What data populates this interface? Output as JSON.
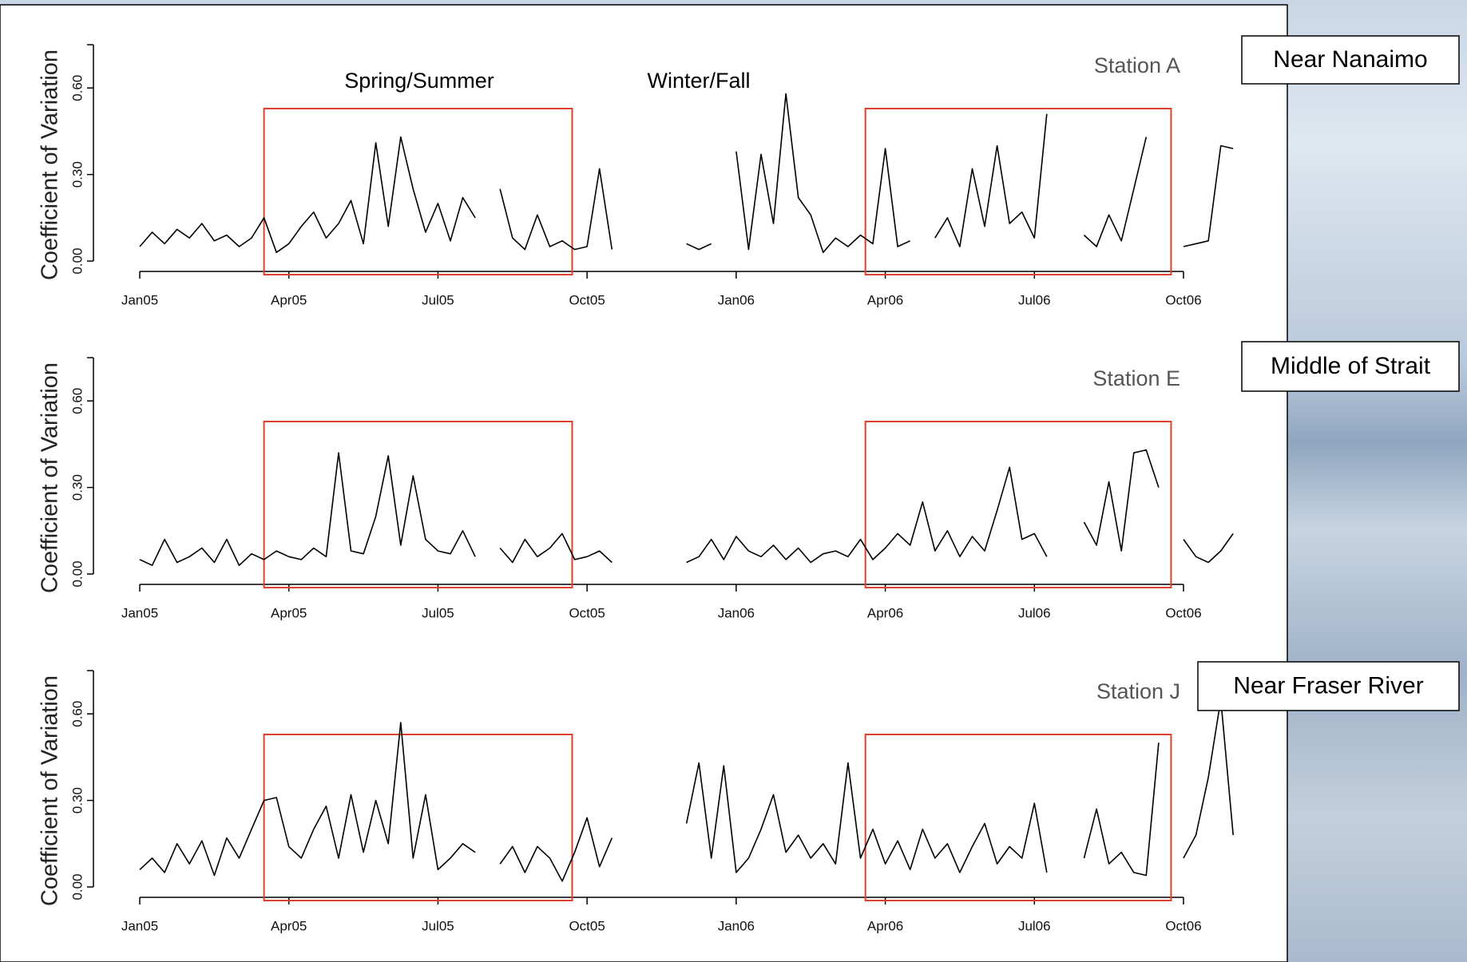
{
  "chart_data": {
    "type": "line",
    "ylabel": "Coefficient of Variation",
    "annotations": [
      "Spring/Summer",
      "Winter/Fall"
    ],
    "x": [
      0,
      0.25,
      0.5,
      0.75,
      1,
      1.25,
      1.5,
      1.75,
      2,
      2.25,
      2.5,
      2.75,
      3,
      3.25,
      3.5,
      3.75,
      4,
      4.25,
      4.5,
      4.75,
      5,
      5.25,
      5.5,
      5.75,
      6,
      6.25,
      6.5,
      6.75,
      7,
      7.25,
      7.5,
      7.75,
      8,
      8.25,
      8.5,
      8.75,
      9,
      9.25,
      9.5,
      9.75,
      10,
      10.25,
      10.5,
      10.75,
      11,
      11.25,
      11.5,
      11.75,
      12,
      12.25,
      12.5,
      12.75,
      13,
      13.25,
      13.5,
      13.75,
      14,
      14.25,
      14.5,
      14.75,
      15,
      15.25,
      15.5,
      15.75,
      16,
      16.25,
      16.5,
      16.75,
      17,
      17.25,
      17.5,
      17.75,
      18,
      18.25,
      18.5,
      18.75,
      19,
      19.25,
      19.5,
      19.75,
      20,
      20.25,
      20.5,
      20.75,
      21,
      21.25,
      21.5,
      21.75,
      22
    ],
    "xlim": [
      0,
      21
    ],
    "xticks": [
      {
        "value": 0,
        "label": "Jan05"
      },
      {
        "value": 3,
        "label": "Apr05"
      },
      {
        "value": 6,
        "label": "Jul05"
      },
      {
        "value": 9,
        "label": "Oct05"
      },
      {
        "value": 12,
        "label": "Jan06"
      },
      {
        "value": 15,
        "label": "Apr06"
      },
      {
        "value": 18,
        "label": "Jul06"
      },
      {
        "value": 21,
        "label": "Oct06"
      }
    ],
    "ylim": [
      0,
      0.75
    ],
    "yticks": [
      {
        "value": 0,
        "label": "0.00"
      },
      {
        "value": 0.3,
        "label": "0.30"
      },
      {
        "value": 0.6,
        "label": "0.60"
      }
    ],
    "color": "#000000",
    "highlight_color": "#e0402a",
    "highlight_ranges": [
      [
        2.5,
        8.7
      ],
      [
        14.6,
        20.75
      ]
    ],
    "series": [
      {
        "name": "Station A",
        "label": "Near Nanaimo",
        "values": [
          0.05,
          0.1,
          0.06,
          0.11,
          0.08,
          0.13,
          0.07,
          0.09,
          0.05,
          0.08,
          0.15,
          0.03,
          0.06,
          0.12,
          0.17,
          0.08,
          0.13,
          0.21,
          0.06,
          0.41,
          0.12,
          0.43,
          0.25,
          0.1,
          0.2,
          0.07,
          0.22,
          0.15,
          null,
          0.25,
          0.08,
          0.04,
          0.16,
          0.05,
          0.07,
          0.04,
          0.05,
          0.32,
          0.04,
          null,
          null,
          null,
          null,
          null,
          0.06,
          0.04,
          0.06,
          null,
          0.38,
          0.04,
          0.37,
          0.13,
          0.58,
          0.22,
          0.16,
          0.03,
          0.08,
          0.05,
          0.09,
          0.06,
          0.39,
          0.05,
          0.07,
          null,
          0.08,
          0.15,
          0.05,
          0.32,
          0.12,
          0.4,
          0.13,
          0.17,
          0.08,
          0.51,
          null,
          null,
          0.09,
          0.05,
          0.16,
          0.07,
          0.25,
          0.43,
          null,
          null,
          0.05,
          0.06,
          0.07,
          0.4,
          0.39
        ]
      },
      {
        "name": "Station E",
        "label": "Middle of Strait",
        "values": [
          0.05,
          0.03,
          0.12,
          0.04,
          0.06,
          0.09,
          0.04,
          0.12,
          0.03,
          0.07,
          0.05,
          0.08,
          0.06,
          0.05,
          0.09,
          0.06,
          0.42,
          0.08,
          0.07,
          0.2,
          0.41,
          0.1,
          0.34,
          0.12,
          0.08,
          0.07,
          0.15,
          0.06,
          null,
          0.09,
          0.04,
          0.12,
          0.06,
          0.09,
          0.14,
          0.05,
          0.06,
          0.08,
          0.04,
          null,
          null,
          null,
          null,
          null,
          0.04,
          0.06,
          0.12,
          0.05,
          0.13,
          0.08,
          0.06,
          0.1,
          0.05,
          0.09,
          0.04,
          0.07,
          0.08,
          0.06,
          0.12,
          0.05,
          0.09,
          0.14,
          0.1,
          0.25,
          0.08,
          0.15,
          0.06,
          0.13,
          0.08,
          0.22,
          0.37,
          0.12,
          0.14,
          0.06,
          null,
          null,
          0.18,
          0.1,
          0.32,
          0.08,
          0.42,
          0.43,
          0.3,
          null,
          0.12,
          0.06,
          0.04,
          0.08,
          0.14
        ]
      },
      {
        "name": "Station J",
        "label": "Near Fraser River",
        "values": [
          0.06,
          0.1,
          0.05,
          0.15,
          0.08,
          0.16,
          0.04,
          0.17,
          0.1,
          0.2,
          0.3,
          0.31,
          0.14,
          0.1,
          0.2,
          0.28,
          0.1,
          0.32,
          0.12,
          0.3,
          0.15,
          0.57,
          0.1,
          0.32,
          0.06,
          0.1,
          0.15,
          0.12,
          null,
          0.08,
          0.14,
          0.05,
          0.14,
          0.1,
          0.02,
          0.12,
          0.24,
          0.07,
          0.17,
          null,
          null,
          null,
          null,
          null,
          0.22,
          0.43,
          0.1,
          0.42,
          0.05,
          0.1,
          0.2,
          0.32,
          0.12,
          0.18,
          0.1,
          0.15,
          0.08,
          0.43,
          0.1,
          0.2,
          0.08,
          0.16,
          0.06,
          0.2,
          0.1,
          0.15,
          0.05,
          0.14,
          0.22,
          0.08,
          0.14,
          0.1,
          0.29,
          0.05,
          null,
          null,
          0.1,
          0.27,
          0.08,
          0.12,
          0.05,
          0.04,
          0.5,
          null,
          0.1,
          0.18,
          0.38,
          0.65,
          0.18
        ]
      }
    ]
  }
}
